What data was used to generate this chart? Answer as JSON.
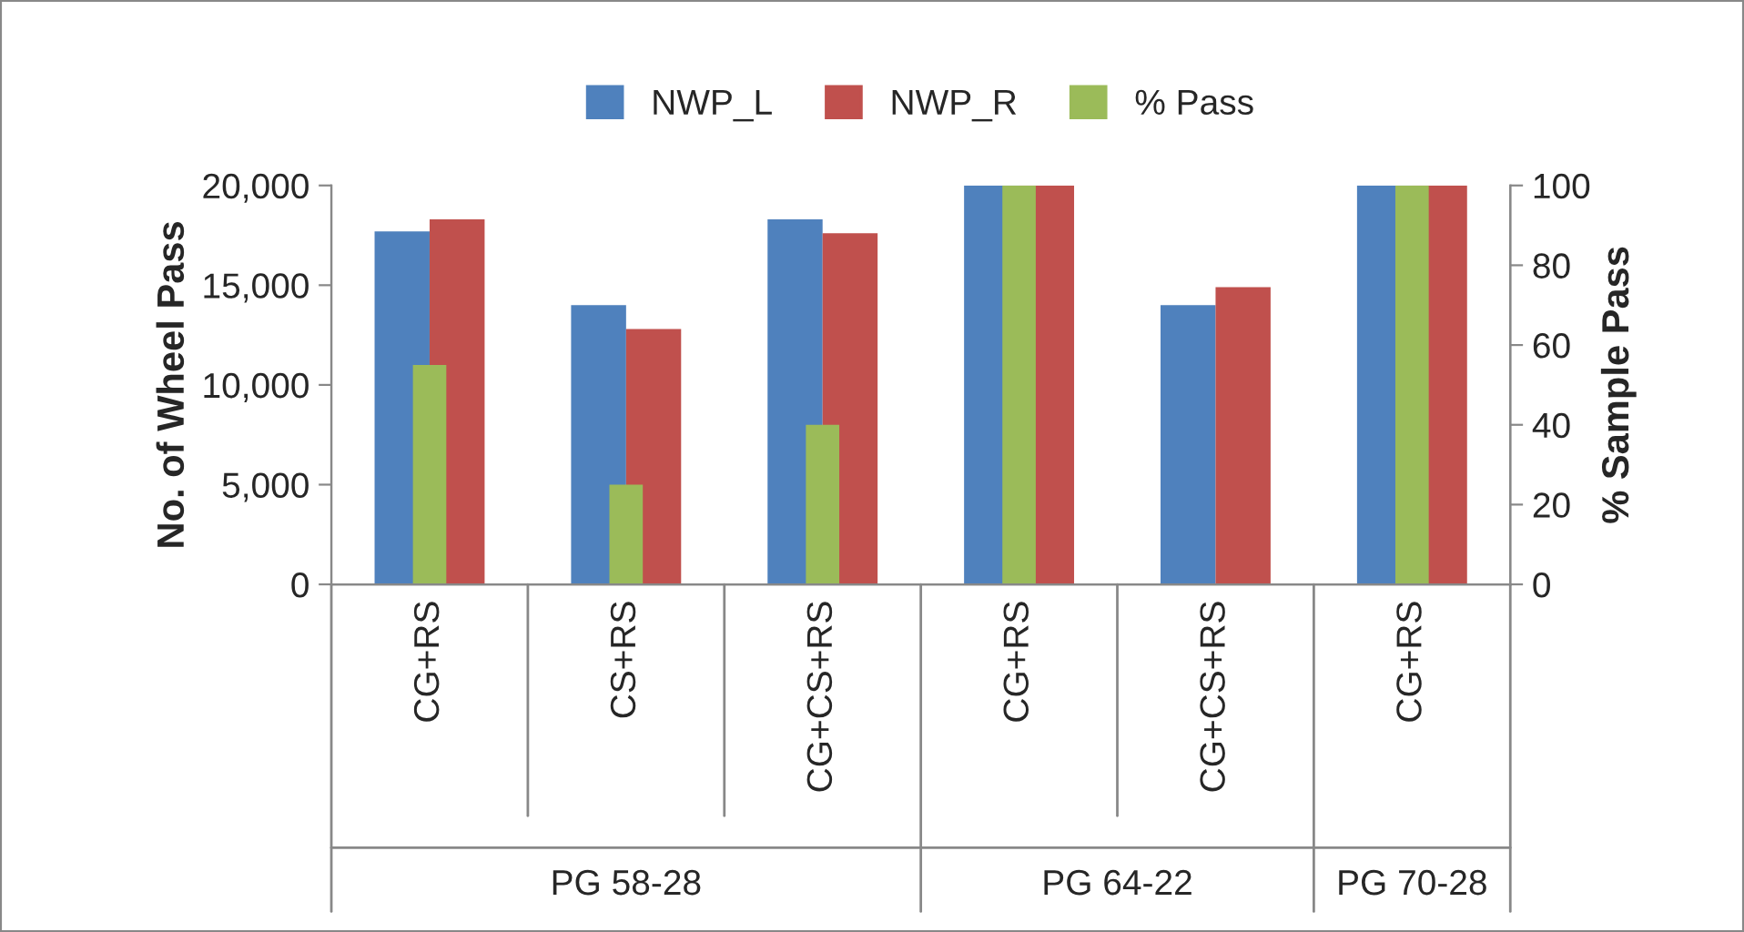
{
  "chart_data": {
    "type": "bar",
    "categories": [
      "CG+RS",
      "CS+RS",
      "CG+CS+RS",
      "CG+RS",
      "CG+CS+RS",
      "CG+RS"
    ],
    "series": [
      {
        "name": "NWP_L",
        "color": "#4f81bd",
        "values": [
          17700,
          14000,
          18300,
          20000,
          14000,
          20000
        ]
      },
      {
        "name": "NWP_R",
        "color": "#c0504d",
        "values": [
          18300,
          12800,
          17600,
          20000,
          14900,
          20000
        ]
      },
      {
        "name": "% Pass",
        "color": "#9bbb59",
        "axis": "y2",
        "values": [
          55,
          25,
          40,
          100,
          0,
          100
        ]
      }
    ],
    "ylabel": "No. of Wheel Pass",
    "y2label": "% Sample Pass",
    "ylim": [
      0,
      20000
    ],
    "yticks": [
      0,
      {
        "value": 5000,
        "label": "5,000"
      },
      {
        "value": 10000,
        "label": "10,000"
      },
      {
        "value": 15000,
        "label": "15,000"
      },
      {
        "value": 20000,
        "label": "20,000"
      }
    ],
    "y2lim": [
      0,
      100
    ],
    "y2ticks": [
      0,
      20,
      40,
      60,
      80,
      100
    ],
    "annotations": [
      "PG 58-28",
      "PG 64-22",
      "PG 70-28"
    ],
    "legend": "top",
    "grid": false
  }
}
